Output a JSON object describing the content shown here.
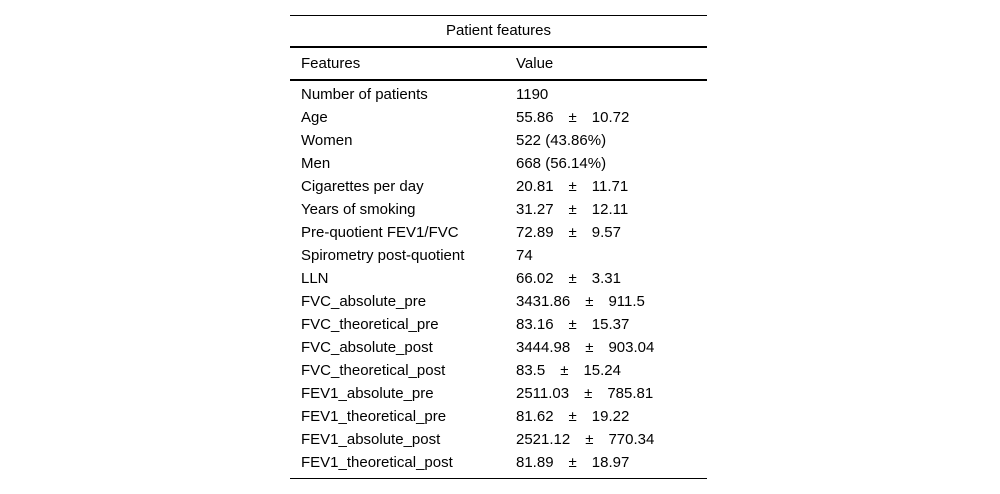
{
  "table": {
    "title": "Patient features",
    "header": {
      "features": "Features",
      "value": "Value"
    },
    "rows": [
      {
        "feature": "Number of patients",
        "mean": "1190",
        "pm": "",
        "std": ""
      },
      {
        "feature": "Age",
        "mean": "55.86",
        "pm": "±",
        "std": "10.72"
      },
      {
        "feature": "Women",
        "mean": "522 (43.86%)",
        "pm": "",
        "std": ""
      },
      {
        "feature": "Men",
        "mean": "668 (56.14%)",
        "pm": "",
        "std": ""
      },
      {
        "feature": "Cigarettes per day",
        "mean": "20.81",
        "pm": "±",
        "std": "11.71"
      },
      {
        "feature": "Years of smoking",
        "mean": "31.27",
        "pm": "±",
        "std": "12.11"
      },
      {
        "feature": "Pre-quotient FEV1/FVC",
        "mean": "72.89",
        "pm": "±",
        "std": "9.57"
      },
      {
        "feature": "Spirometry post-quotient",
        "mean": "74",
        "pm": "",
        "std": ""
      },
      {
        "feature": "LLN",
        "mean": "66.02",
        "pm": "±",
        "std": "3.31"
      },
      {
        "feature": "FVC_absolute_pre",
        "mean": "3431.86",
        "pm": "±",
        "std": "911.5"
      },
      {
        "feature": "FVC_theoretical_pre",
        "mean": "83.16",
        "pm": "±",
        "std": "15.37"
      },
      {
        "feature": "FVC_absolute_post",
        "mean": "3444.98",
        "pm": "±",
        "std": "903.04"
      },
      {
        "feature": "FVC_theoretical_post",
        "mean": "83.5",
        "pm": "±",
        "std": "15.24"
      },
      {
        "feature": "FEV1_absolute_pre",
        "mean": "2511.03",
        "pm": "±",
        "std": "785.81"
      },
      {
        "feature": "FEV1_theoretical_pre",
        "mean": "81.62",
        "pm": "±",
        "std": "19.22"
      },
      {
        "feature": "FEV1_absolute_post",
        "mean": "2521.12",
        "pm": "±",
        "std": "770.34"
      },
      {
        "feature": "FEV1_theoretical_post",
        "mean": "81.89",
        "pm": "±",
        "std": "18.97"
      }
    ],
    "colors": {
      "text": "#000000",
      "background": "#ffffff",
      "rule": "#000000"
    }
  }
}
